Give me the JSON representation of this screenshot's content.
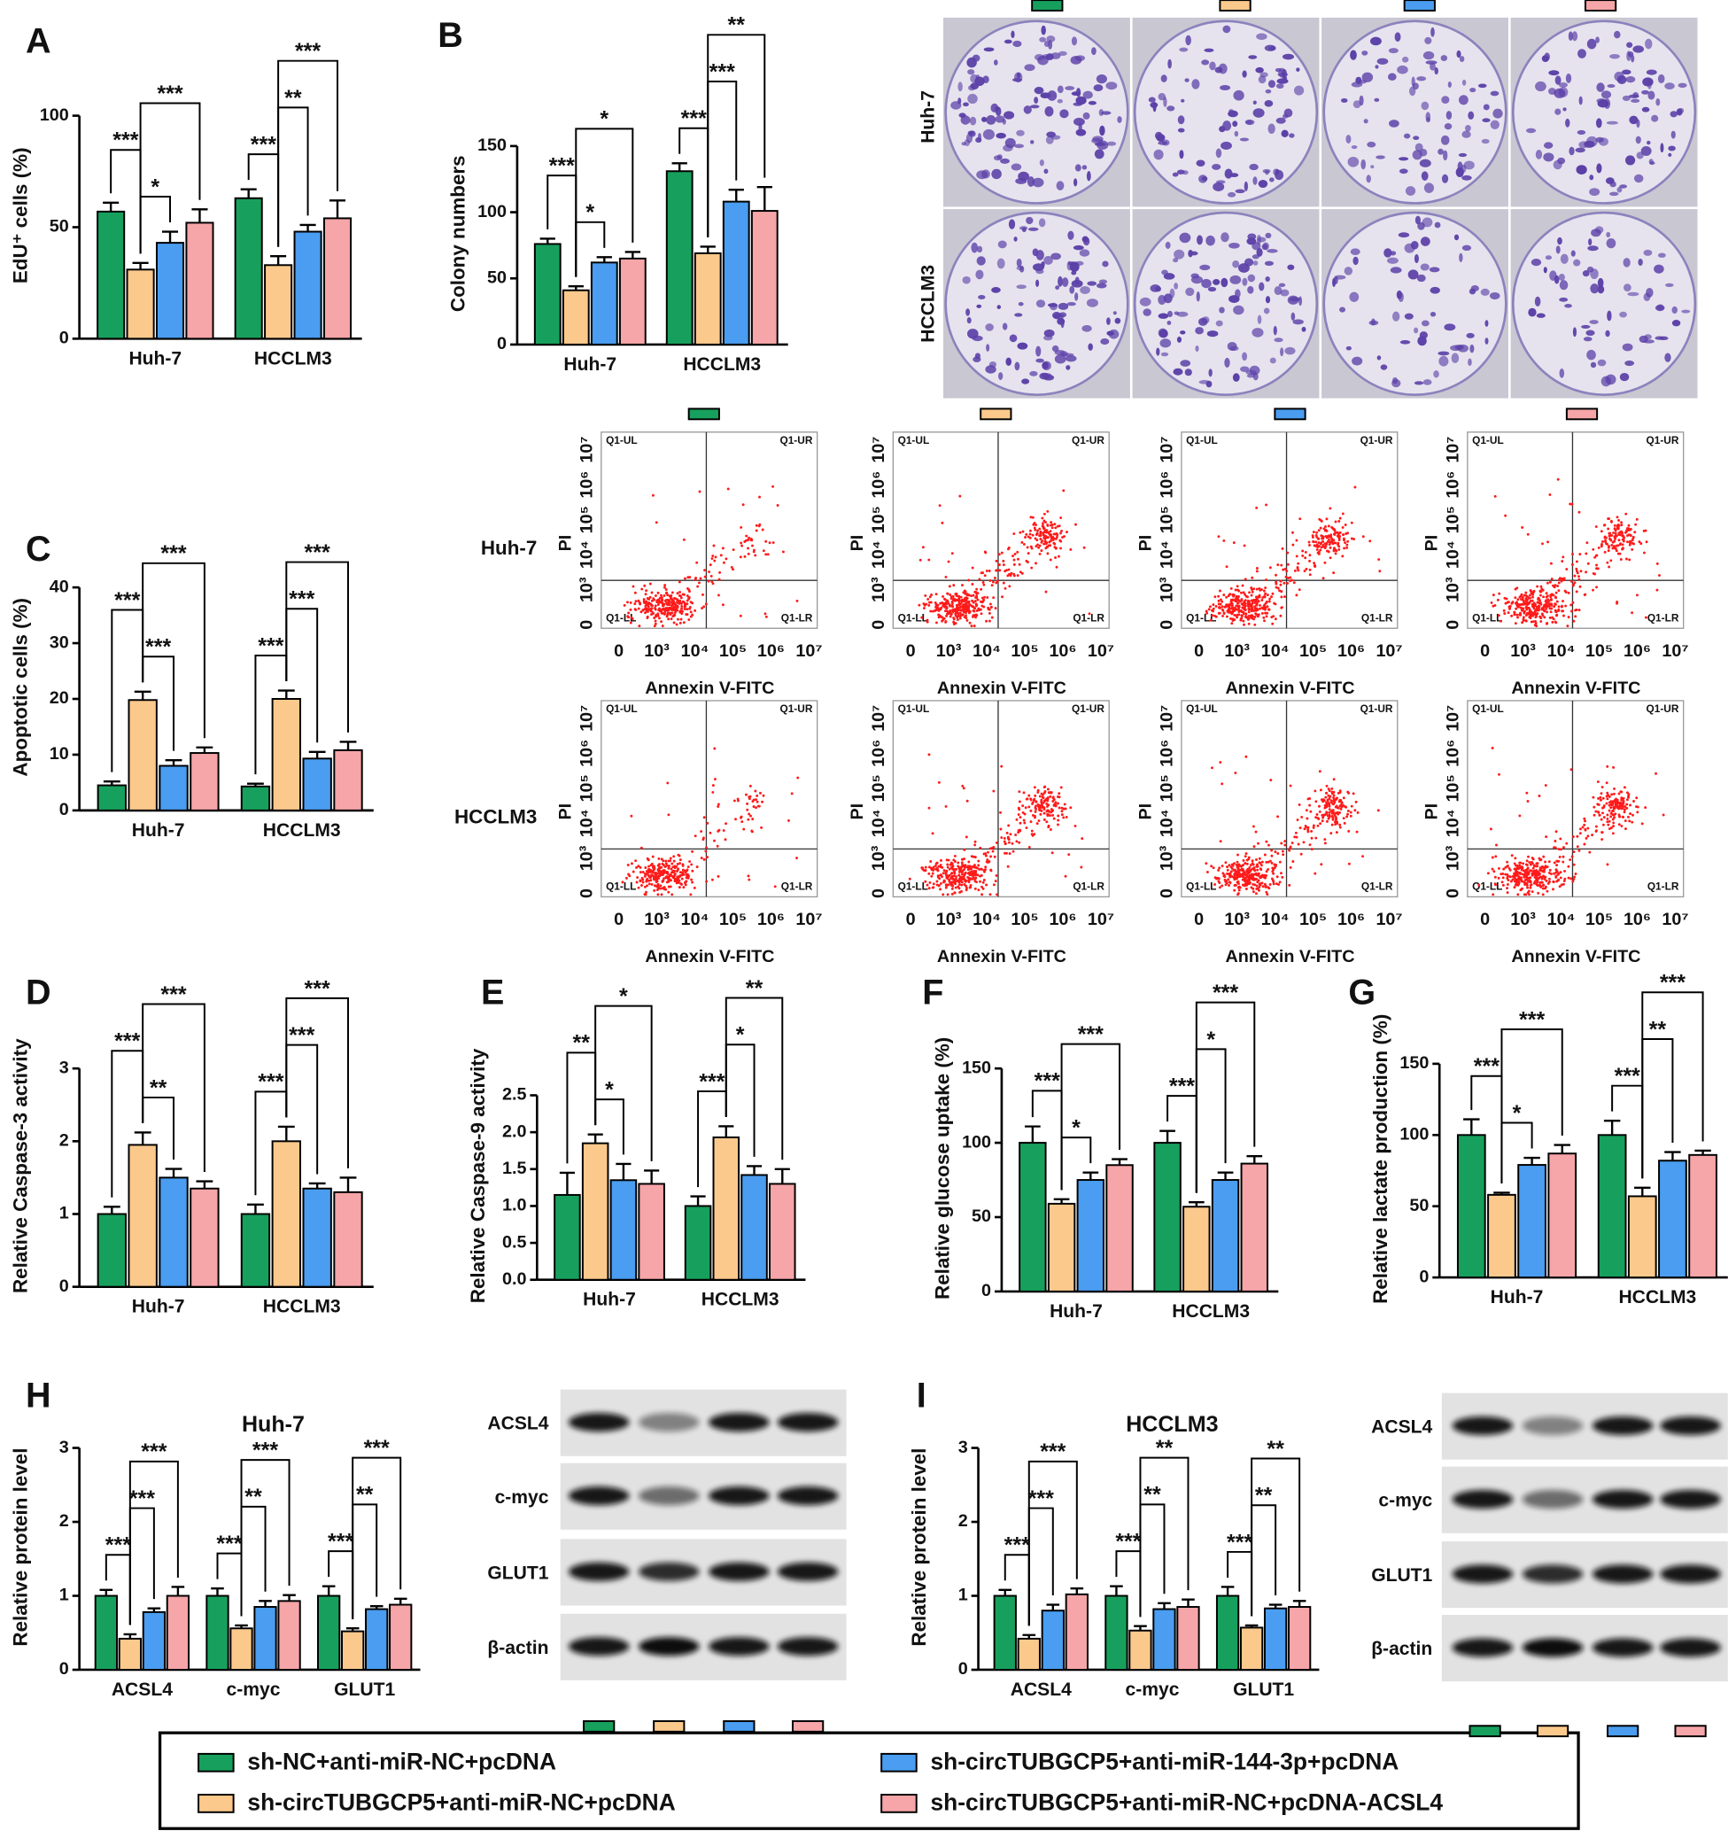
{
  "legend": [
    {
      "name": "sh-NC+anti-miR-NC+pcDNA",
      "color": "#17a05d"
    },
    {
      "name": "sh-circTUBGCP5+anti-miR-NC+pcDNA",
      "color": "#fbc98c"
    },
    {
      "name": "sh-circTUBGCP5+anti-miR-144-3p+pcDNA",
      "color": "#4a9df0"
    },
    {
      "name": "sh-circTUBGCP5+anti-miR-NC+pcDNA-ACSL4",
      "color": "#f6a5a8"
    }
  ],
  "chart_data": [
    {
      "type": "bar",
      "panel": "A",
      "ylabel": "EdU⁺ cells (%)",
      "categories": [
        "Huh-7",
        "HCCLM3"
      ],
      "ylim": [
        0,
        100
      ],
      "yticks": [
        0,
        50,
        100
      ],
      "series": [
        {
          "color": "#17a05d",
          "values": [
            57,
            63
          ],
          "errors": [
            4,
            4
          ]
        },
        {
          "color": "#fbc98c",
          "values": [
            31,
            33
          ],
          "errors": [
            3,
            4
          ]
        },
        {
          "color": "#4a9df0",
          "values": [
            43,
            48
          ],
          "errors": [
            5,
            3
          ]
        },
        {
          "color": "#f6a5a8",
          "values": [
            52,
            54
          ],
          "errors": [
            6,
            8
          ]
        }
      ],
      "annotations": [
        {
          "label": "*",
          "category": 0,
          "from": 1,
          "to": 2
        },
        {
          "label": "***",
          "category": 0,
          "from": 0,
          "to": 1
        },
        {
          "label": "***",
          "category": 0,
          "from": 1,
          "to": 3
        },
        {
          "label": "***",
          "category": 1,
          "from": 0,
          "to": 1
        },
        {
          "label": "**",
          "category": 1,
          "from": 1,
          "to": 2
        },
        {
          "label": "***",
          "category": 1,
          "from": 1,
          "to": 3
        }
      ]
    },
    {
      "type": "bar",
      "panel": "B",
      "ylabel": "Colony numbers",
      "categories": [
        "Huh-7",
        "HCCLM3"
      ],
      "ylim": [
        0,
        150
      ],
      "yticks": [
        0,
        50,
        100,
        150
      ],
      "series": [
        {
          "color": "#17a05d",
          "values": [
            76,
            131
          ],
          "errors": [
            4,
            6
          ]
        },
        {
          "color": "#fbc98c",
          "values": [
            41,
            69
          ],
          "errors": [
            3,
            5
          ]
        },
        {
          "color": "#4a9df0",
          "values": [
            62,
            108
          ],
          "errors": [
            4,
            9
          ]
        },
        {
          "color": "#f6a5a8",
          "values": [
            65,
            101
          ],
          "errors": [
            5,
            18
          ]
        }
      ],
      "annotations": [
        {
          "label": "*",
          "category": 0,
          "from": 1,
          "to": 2
        },
        {
          "label": "***",
          "category": 0,
          "from": 0,
          "to": 1
        },
        {
          "label": "*",
          "category": 0,
          "from": 1,
          "to": 3
        },
        {
          "label": "***",
          "category": 1,
          "from": 0,
          "to": 1
        },
        {
          "label": "***",
          "category": 1,
          "from": 1,
          "to": 2
        },
        {
          "label": "**",
          "category": 1,
          "from": 1,
          "to": 3
        }
      ]
    },
    {
      "type": "bar",
      "panel": "C",
      "ylabel": "Apoptotic cells (%)",
      "categories": [
        "Huh-7",
        "HCCLM3"
      ],
      "ylim": [
        0,
        40
      ],
      "yticks": [
        0,
        10,
        20,
        30,
        40
      ],
      "series": [
        {
          "color": "#17a05d",
          "values": [
            4.5,
            4.3
          ],
          "errors": [
            0.7,
            0.5
          ]
        },
        {
          "color": "#fbc98c",
          "values": [
            19.8,
            20
          ],
          "errors": [
            1.5,
            1.5
          ]
        },
        {
          "color": "#4a9df0",
          "values": [
            8,
            9.3
          ],
          "errors": [
            1,
            1.2
          ]
        },
        {
          "color": "#f6a5a8",
          "values": [
            10.3,
            10.8
          ],
          "errors": [
            1,
            1.5
          ]
        }
      ],
      "annotations": [
        {
          "label": "***",
          "category": 0,
          "from": 1,
          "to": 2
        },
        {
          "label": "***",
          "category": 0,
          "from": 0,
          "to": 1
        },
        {
          "label": "***",
          "category": 0,
          "from": 1,
          "to": 3
        },
        {
          "label": "***",
          "category": 1,
          "from": 0,
          "to": 1
        },
        {
          "label": "***",
          "category": 1,
          "from": 1,
          "to": 2
        },
        {
          "label": "***",
          "category": 1,
          "from": 1,
          "to": 3
        }
      ]
    },
    {
      "type": "bar",
      "panel": "D",
      "ylabel": "Relative Caspase-3 activity",
      "categories": [
        "Huh-7",
        "HCCLM3"
      ],
      "ylim": [
        0,
        3
      ],
      "yticks": [
        0,
        1,
        2,
        3
      ],
      "series": [
        {
          "color": "#17a05d",
          "values": [
            1.0,
            1.0
          ],
          "errors": [
            0.1,
            0.13
          ]
        },
        {
          "color": "#fbc98c",
          "values": [
            1.95,
            2.0
          ],
          "errors": [
            0.17,
            0.2
          ]
        },
        {
          "color": "#4a9df0",
          "values": [
            1.5,
            1.35
          ],
          "errors": [
            0.12,
            0.07
          ]
        },
        {
          "color": "#f6a5a8",
          "values": [
            1.35,
            1.3
          ],
          "errors": [
            0.1,
            0.2
          ]
        }
      ],
      "annotations": [
        {
          "label": "**",
          "category": 0,
          "from": 1,
          "to": 2
        },
        {
          "label": "***",
          "category": 0,
          "from": 0,
          "to": 1
        },
        {
          "label": "***",
          "category": 0,
          "from": 1,
          "to": 3
        },
        {
          "label": "***",
          "category": 1,
          "from": 0,
          "to": 1
        },
        {
          "label": "***",
          "category": 1,
          "from": 1,
          "to": 2
        },
        {
          "label": "***",
          "category": 1,
          "from": 1,
          "to": 3
        }
      ]
    },
    {
      "type": "bar",
      "panel": "E",
      "ylabel": "Relative Caspase-9 activity",
      "categories": [
        "Huh-7",
        "HCCLM3"
      ],
      "ylim": [
        0,
        2.5
      ],
      "yticks": [
        {
          "value": 0,
          "label": "0.0"
        },
        0.5,
        {
          "value": 1,
          "label": "1.0"
        },
        1.5,
        {
          "value": 2,
          "label": "2.0"
        },
        2.5
      ],
      "series": [
        {
          "color": "#17a05d",
          "values": [
            1.15,
            1.0
          ],
          "errors": [
            0.3,
            0.13
          ]
        },
        {
          "color": "#fbc98c",
          "values": [
            1.85,
            1.93
          ],
          "errors": [
            0.12,
            0.15
          ]
        },
        {
          "color": "#4a9df0",
          "values": [
            1.35,
            1.42
          ],
          "errors": [
            0.22,
            0.12
          ]
        },
        {
          "color": "#f6a5a8",
          "values": [
            1.3,
            1.3
          ],
          "errors": [
            0.18,
            0.2
          ]
        }
      ],
      "annotations": [
        {
          "label": "*",
          "category": 0,
          "from": 1,
          "to": 2
        },
        {
          "label": "**",
          "category": 0,
          "from": 0,
          "to": 1
        },
        {
          "label": "*",
          "category": 0,
          "from": 1,
          "to": 3
        },
        {
          "label": "***",
          "category": 1,
          "from": 0,
          "to": 1
        },
        {
          "label": "*",
          "category": 1,
          "from": 1,
          "to": 2
        },
        {
          "label": "**",
          "category": 1,
          "from": 1,
          "to": 3
        }
      ]
    },
    {
      "type": "bar",
      "panel": "F",
      "ylabel": "Relative glucose uptake (%)",
      "categories": [
        "Huh-7",
        "HCCLM3"
      ],
      "ylim": [
        0,
        150
      ],
      "yticks": [
        0,
        50,
        100,
        150
      ],
      "series": [
        {
          "color": "#17a05d",
          "values": [
            100,
            100
          ],
          "errors": [
            11,
            8
          ]
        },
        {
          "color": "#fbc98c",
          "values": [
            59,
            57
          ],
          "errors": [
            3,
            3
          ]
        },
        {
          "color": "#4a9df0",
          "values": [
            75,
            75
          ],
          "errors": [
            5,
            5
          ]
        },
        {
          "color": "#f6a5a8",
          "values": [
            85,
            86
          ],
          "errors": [
            4,
            5
          ]
        }
      ],
      "annotations": [
        {
          "label": "*",
          "category": 0,
          "from": 1,
          "to": 2
        },
        {
          "label": "***",
          "category": 0,
          "from": 0,
          "to": 1
        },
        {
          "label": "***",
          "category": 0,
          "from": 1,
          "to": 3
        },
        {
          "label": "***",
          "category": 1,
          "from": 0,
          "to": 1
        },
        {
          "label": "*",
          "category": 1,
          "from": 1,
          "to": 2
        },
        {
          "label": "***",
          "category": 1,
          "from": 1,
          "to": 3
        }
      ]
    },
    {
      "type": "bar",
      "panel": "G",
      "ylabel": "Relative lactate production (%)",
      "categories": [
        "Huh-7",
        "HCCLM3"
      ],
      "ylim": [
        0,
        150
      ],
      "yticks": [
        0,
        50,
        100,
        150
      ],
      "series": [
        {
          "color": "#17a05d",
          "values": [
            100,
            100
          ],
          "errors": [
            11,
            10
          ]
        },
        {
          "color": "#fbc98c",
          "values": [
            58,
            57
          ],
          "errors": [
            1.5,
            6
          ]
        },
        {
          "color": "#4a9df0",
          "values": [
            79,
            82
          ],
          "errors": [
            5,
            6
          ]
        },
        {
          "color": "#f6a5a8",
          "values": [
            87,
            86
          ],
          "errors": [
            6,
            3
          ]
        }
      ],
      "annotations": [
        {
          "label": "*",
          "category": 0,
          "from": 1,
          "to": 2
        },
        {
          "label": "***",
          "category": 0,
          "from": 0,
          "to": 1
        },
        {
          "label": "***",
          "category": 0,
          "from": 1,
          "to": 3
        },
        {
          "label": "***",
          "category": 1,
          "from": 0,
          "to": 1
        },
        {
          "label": "**",
          "category": 1,
          "from": 1,
          "to": 2
        },
        {
          "label": "***",
          "category": 1,
          "from": 1,
          "to": 3
        }
      ]
    },
    {
      "type": "bar",
      "panel": "H",
      "title": "Huh-7",
      "ylabel": "Relative protein level",
      "categories": [
        "ACSL4",
        "c-myc",
        "GLUT1"
      ],
      "ylim": [
        0,
        3
      ],
      "yticks": [
        0,
        1,
        2,
        3
      ],
      "series": [
        {
          "color": "#17a05d",
          "values": [
            1.0,
            1.0,
            1.0
          ],
          "errors": [
            0.08,
            0.1,
            0.13
          ]
        },
        {
          "color": "#fbc98c",
          "values": [
            0.42,
            0.56,
            0.52
          ],
          "errors": [
            0.06,
            0.04,
            0.04
          ]
        },
        {
          "color": "#4a9df0",
          "values": [
            0.78,
            0.85,
            0.82
          ],
          "errors": [
            0.05,
            0.08,
            0.04
          ]
        },
        {
          "color": "#f6a5a8",
          "values": [
            1.0,
            0.93,
            0.88
          ],
          "errors": [
            0.12,
            0.08,
            0.08
          ]
        }
      ],
      "annotations": [
        {
          "label": "***",
          "category": 0,
          "from": 0,
          "to": 1
        },
        {
          "label": "***",
          "category": 0,
          "from": 1,
          "to": 2
        },
        {
          "label": "***",
          "category": 0,
          "from": 1,
          "to": 3
        },
        {
          "label": "***",
          "category": 1,
          "from": 0,
          "to": 1
        },
        {
          "label": "**",
          "category": 1,
          "from": 1,
          "to": 2
        },
        {
          "label": "***",
          "category": 1,
          "from": 1,
          "to": 3
        },
        {
          "label": "***",
          "category": 2,
          "from": 0,
          "to": 1
        },
        {
          "label": "**",
          "category": 2,
          "from": 1,
          "to": 2
        },
        {
          "label": "***",
          "category": 2,
          "from": 1,
          "to": 3
        }
      ]
    },
    {
      "type": "bar",
      "panel": "I",
      "title": "HCCLM3",
      "ylabel": "Relative protein level",
      "categories": [
        "ACSL4",
        "c-myc",
        "GLUT1"
      ],
      "ylim": [
        0,
        3
      ],
      "yticks": [
        0,
        1,
        2,
        3
      ],
      "series": [
        {
          "color": "#17a05d",
          "values": [
            1.0,
            1.0,
            1.0
          ],
          "errors": [
            0.08,
            0.13,
            0.12
          ]
        },
        {
          "color": "#fbc98c",
          "values": [
            0.42,
            0.53,
            0.57
          ],
          "errors": [
            0.05,
            0.06,
            0.03
          ]
        },
        {
          "color": "#4a9df0",
          "values": [
            0.8,
            0.82,
            0.83
          ],
          "errors": [
            0.08,
            0.08,
            0.05
          ]
        },
        {
          "color": "#f6a5a8",
          "values": [
            1.02,
            0.85,
            0.85
          ],
          "errors": [
            0.08,
            0.1,
            0.08
          ]
        }
      ],
      "annotations": [
        {
          "label": "***",
          "category": 0,
          "from": 0,
          "to": 1
        },
        {
          "label": "***",
          "category": 0,
          "from": 1,
          "to": 2
        },
        {
          "label": "***",
          "category": 0,
          "from": 1,
          "to": 3
        },
        {
          "label": "***",
          "category": 1,
          "from": 0,
          "to": 1
        },
        {
          "label": "**",
          "category": 1,
          "from": 1,
          "to": 2
        },
        {
          "label": "**",
          "category": 1,
          "from": 1,
          "to": 3
        },
        {
          "label": "***",
          "category": 2,
          "from": 0,
          "to": 1
        },
        {
          "label": "**",
          "category": 2,
          "from": 1,
          "to": 2
        },
        {
          "label": "**",
          "category": 2,
          "from": 1,
          "to": 3
        }
      ]
    }
  ],
  "colony_assay": {
    "rows": [
      "Huh-7",
      "HCCLM3"
    ]
  },
  "flow_cytometry": {
    "rows": [
      "Huh-7",
      "HCCLM3"
    ],
    "x_label": "Annexin V-FITC",
    "y_label": "PI",
    "ticks": [
      "0",
      "10³",
      "10⁴",
      "10⁵",
      "10⁶",
      "10⁷"
    ],
    "quadrants": [
      "Q1-UL",
      "Q1-UR",
      "Q1-LL",
      "Q1-LR"
    ]
  },
  "western_blot": {
    "labels": [
      "ACSL4",
      "c-myc",
      "GLUT1",
      "β-actin"
    ]
  }
}
